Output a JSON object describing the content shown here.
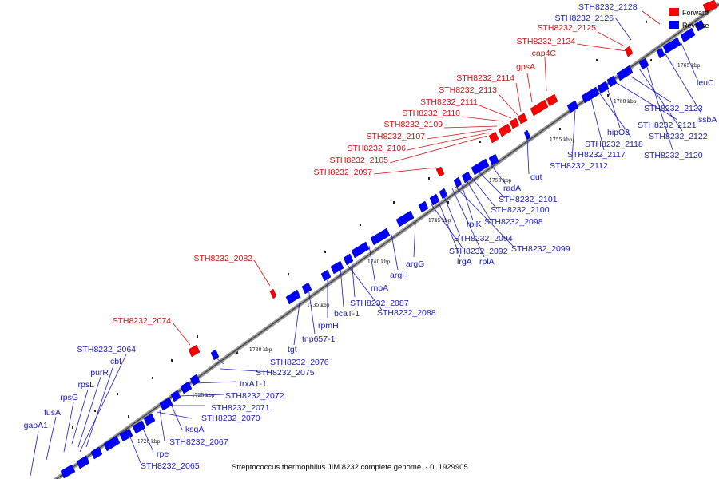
{
  "caption": "Streptococcus thermophilus JIM 8232 complete genome. - 0..1929905",
  "legend": [
    {
      "label": "Forward",
      "color": "#ff0000"
    },
    {
      "label": "Reverse",
      "color": "#0000ff"
    }
  ],
  "colors": {
    "forward": "#ff0000",
    "reverse": "#0000ff",
    "forward_label": "#d11212",
    "reverse_label": "#1a1ab4"
  },
  "kbp_marks": [
    "1720 kbp",
    "1725 kbp",
    "1730 kbp",
    "1735 kbp",
    "1740 kbp",
    "1745 kbp",
    "1750 kbp",
    "1755 kbp",
    "1760 kbp",
    "1765 kbp"
  ],
  "forward_labels": [
    "STH8232_2128",
    "STH8232_2125",
    "STH8232_2124",
    "cap4C",
    "gpsA",
    "STH8232_2114",
    "STH8232_2113",
    "STH8232_2111",
    "STH8232_2110",
    "STH8232_2109",
    "STH8232_2107",
    "STH8232_2106",
    "STH8232_2105",
    "STH8232_2097",
    "STH8232_2082",
    "STH8232_2074"
  ],
  "reverse_labels": [
    "STH8232_2126",
    "leuC",
    "STH8232_2123",
    "ssbA",
    "STH8232_2121",
    "STH8232_2122",
    "STH8232_2120",
    "hipO3",
    "STH8232_2118",
    "STH8232_2117",
    "STH8232_2112",
    "dut",
    "radA",
    "STH8232_2101",
    "STH8232_2100",
    "rplK",
    "STH8232_2098",
    "STH8232_2094",
    "STH8232_2092",
    "STH8232_2099",
    "lrgA",
    "rplA",
    "argG",
    "argH",
    "rnpA",
    "STH8232_2087",
    "bcaT-1",
    "STH8232_2088",
    "rpmH",
    "tnp657-1",
    "tgt",
    "STH8232_2076",
    "STH8232_2075",
    "trxA1-1",
    "STH8232_2072",
    "STH8232_2071",
    "STH8232_2070",
    "ksgA",
    "STH8232_2067",
    "rpe",
    "STH8232_2065",
    "STH8232_2064",
    "cbf",
    "purR",
    "rpsL",
    "rpsG",
    "fusA",
    "gapA1"
  ]
}
